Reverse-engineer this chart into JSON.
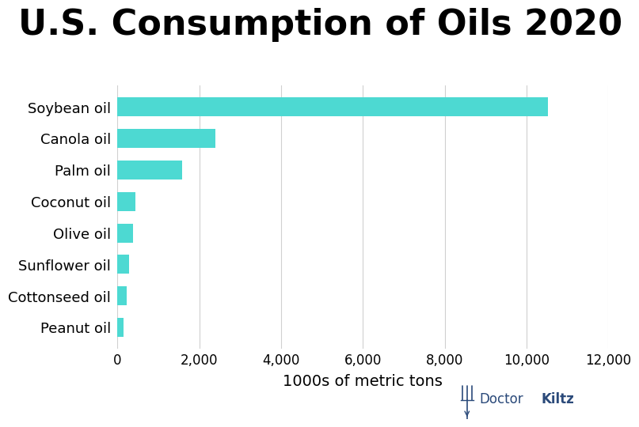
{
  "title": "U.S. Consumption of Oils 2020",
  "categories": [
    "Soybean oil",
    "Canola oil",
    "Palm oil",
    "Coconut oil",
    "Olive oil",
    "Sunflower oil",
    "Cottonseed oil",
    "Peanut oil"
  ],
  "values": [
    10530,
    2390,
    1580,
    450,
    390,
    280,
    220,
    160
  ],
  "bar_color": "#4DD9D2",
  "xlabel": "1000s of metric tons",
  "xlim": [
    0,
    12000
  ],
  "xticks": [
    0,
    2000,
    4000,
    6000,
    8000,
    10000,
    12000
  ],
  "xtick_labels": [
    "0",
    "2,000",
    "4,000",
    "6,000",
    "8,000",
    "10,000",
    "12,000"
  ],
  "background_color": "#ffffff",
  "title_fontsize": 32,
  "xlabel_fontsize": 14,
  "tick_fontsize": 12,
  "ytick_fontsize": 13,
  "grid_color": "#d0d0d0",
  "logo_color": "#2B4A7A"
}
